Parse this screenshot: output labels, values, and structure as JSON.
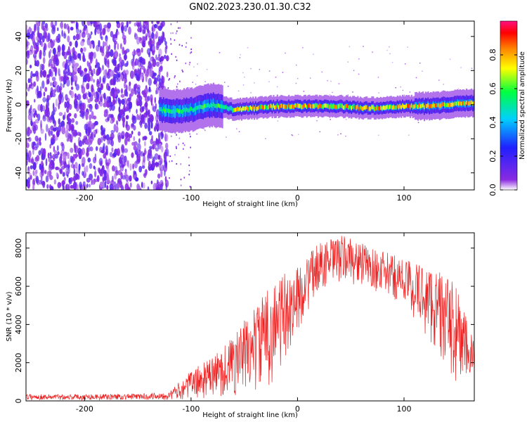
{
  "page_title": "GN02.2023.230.01.30.C32",
  "chart_data": [
    {
      "type": "heatmap",
      "title": "GN02.2023.230.01.30.C32",
      "xlabel": "Height of straight line (km)",
      "ylabel": "Frequency (Hz)",
      "xlim": [
        -255,
        166
      ],
      "ylim": [
        -50,
        49
      ],
      "x_ticks": [
        -200,
        -100,
        0,
        100
      ],
      "y_ticks": [
        -40,
        -20,
        0,
        20,
        40
      ],
      "colorbar": {
        "label": "Normalized spectral amplitude",
        "range": [
          0,
          1
        ],
        "ticks": [
          0.0,
          0.2,
          0.4,
          0.6,
          0.8
        ],
        "colormap": [
          "#ffffff",
          "#8a2be2",
          "#2020ff",
          "#00d0ff",
          "#00ff40",
          "#ffff00",
          "#ff8000",
          "#ff0000",
          "#ff1080"
        ]
      },
      "noise_region_x": [
        -255,
        -122
      ],
      "sparse_region_x": [
        -122,
        -100
      ],
      "signal_band_center": [
        {
          "x": -130,
          "y": -3
        },
        {
          "x": -115,
          "y": -4
        },
        {
          "x": -100,
          "y": -3
        },
        {
          "x": -80,
          "y": 0
        },
        {
          "x": -60,
          "y": -3
        },
        {
          "x": -40,
          "y": -2
        },
        {
          "x": -20,
          "y": -1
        },
        {
          "x": 0,
          "y": -1
        },
        {
          "x": 20,
          "y": -1
        },
        {
          "x": 40,
          "y": -1
        },
        {
          "x": 60,
          "y": -2
        },
        {
          "x": 80,
          "y": -2
        },
        {
          "x": 100,
          "y": -1
        },
        {
          "x": 120,
          "y": -1
        },
        {
          "x": 140,
          "y": 0
        },
        {
          "x": 166,
          "y": 1
        }
      ],
      "grid": false
    },
    {
      "type": "line",
      "xlabel": "Height of straight line (km)",
      "ylabel": "SNR (10 * v/v)",
      "xlim": [
        -255,
        166
      ],
      "ylim": [
        0,
        8800
      ],
      "x_ticks": [
        -200,
        -100,
        0,
        100
      ],
      "y_ticks": [
        0,
        2000,
        4000,
        6000,
        8000
      ],
      "color": "#ee2222",
      "envelope": [
        {
          "x": -255,
          "low": 50,
          "high": 350
        },
        {
          "x": -200,
          "low": 50,
          "high": 350
        },
        {
          "x": -150,
          "low": 50,
          "high": 380
        },
        {
          "x": -120,
          "low": 50,
          "high": 500
        },
        {
          "x": -100,
          "low": 100,
          "high": 1600
        },
        {
          "x": -80,
          "low": 150,
          "high": 2300
        },
        {
          "x": -60,
          "low": 200,
          "high": 3500
        },
        {
          "x": -40,
          "low": 400,
          "high": 5000
        },
        {
          "x": -20,
          "low": 1000,
          "high": 6500
        },
        {
          "x": 0,
          "low": 3500,
          "high": 7000
        },
        {
          "x": 20,
          "low": 5800,
          "high": 8300
        },
        {
          "x": 45,
          "low": 6200,
          "high": 8700
        },
        {
          "x": 70,
          "low": 5800,
          "high": 8000
        },
        {
          "x": 100,
          "low": 5000,
          "high": 7500
        },
        {
          "x": 130,
          "low": 2500,
          "high": 7000
        },
        {
          "x": 150,
          "low": 800,
          "high": 6000
        },
        {
          "x": 166,
          "low": 800,
          "high": 3000
        }
      ],
      "grid": false
    }
  ]
}
